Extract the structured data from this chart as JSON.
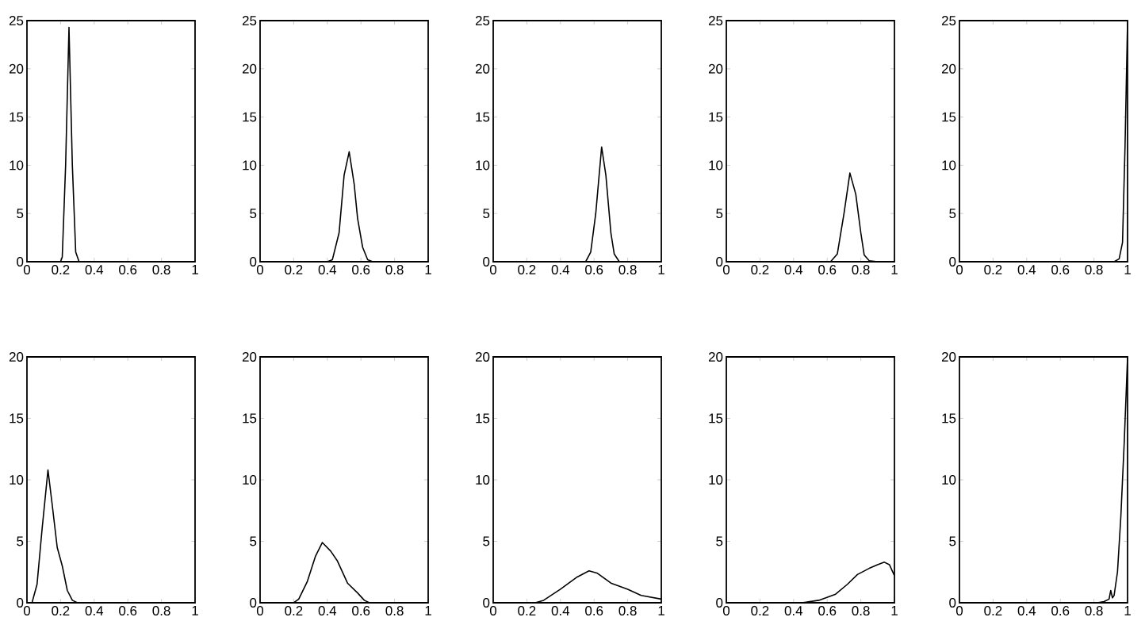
{
  "chart_data": [
    {
      "type": "line",
      "color": "#000000",
      "xlim": [
        0,
        1
      ],
      "ylim": [
        0,
        25
      ],
      "xticks": [
        0,
        0.2,
        0.4,
        0.6,
        0.8,
        1
      ],
      "yticks": [
        0,
        5,
        10,
        15,
        20,
        25
      ],
      "x": [
        0,
        0.2,
        0.21,
        0.23,
        0.25,
        0.27,
        0.29,
        0.31,
        1
      ],
      "values": [
        0,
        0,
        0.5,
        10,
        24.3,
        10,
        1,
        0,
        0
      ]
    },
    {
      "type": "line",
      "color": "#000000",
      "xlim": [
        0,
        1
      ],
      "ylim": [
        0,
        25
      ],
      "xticks": [
        0,
        0.2,
        0.4,
        0.6,
        0.8,
        1
      ],
      "yticks": [
        0,
        5,
        10,
        15,
        20,
        25
      ],
      "x": [
        0,
        0.4,
        0.43,
        0.47,
        0.5,
        0.53,
        0.56,
        0.58,
        0.61,
        0.64,
        0.67,
        1
      ],
      "values": [
        0,
        0,
        0.2,
        3,
        9,
        11.4,
        8,
        4.5,
        1.5,
        0.2,
        0,
        0
      ]
    },
    {
      "type": "line",
      "color": "#000000",
      "xlim": [
        0,
        1
      ],
      "ylim": [
        0,
        25
      ],
      "xticks": [
        0,
        0.2,
        0.4,
        0.6,
        0.8,
        1
      ],
      "yticks": [
        0,
        5,
        10,
        15,
        20,
        25
      ],
      "x": [
        0,
        0.55,
        0.58,
        0.61,
        0.645,
        0.67,
        0.7,
        0.72,
        0.75,
        1
      ],
      "values": [
        0,
        0,
        1,
        5,
        11.9,
        9,
        3,
        0.8,
        0,
        0
      ]
    },
    {
      "type": "line",
      "color": "#000000",
      "xlim": [
        0,
        1
      ],
      "ylim": [
        0,
        25
      ],
      "xticks": [
        0,
        0.2,
        0.4,
        0.6,
        0.8,
        1
      ],
      "yticks": [
        0,
        5,
        10,
        15,
        20,
        25
      ],
      "x": [
        0,
        0.62,
        0.66,
        0.7,
        0.735,
        0.77,
        0.8,
        0.82,
        0.85,
        0.9,
        1
      ],
      "values": [
        0,
        0,
        0.8,
        5,
        9.2,
        7,
        3,
        0.7,
        0.1,
        0,
        0
      ]
    },
    {
      "type": "line",
      "color": "#000000",
      "xlim": [
        0,
        1
      ],
      "ylim": [
        0,
        25
      ],
      "xticks": [
        0,
        0.2,
        0.4,
        0.6,
        0.8,
        1
      ],
      "yticks": [
        0,
        5,
        10,
        15,
        20,
        25
      ],
      "x": [
        0,
        0.92,
        0.95,
        0.97,
        0.985,
        1
      ],
      "values": [
        0,
        0,
        0.3,
        2,
        12,
        25
      ]
    },
    {
      "type": "line",
      "color": "#000000",
      "xlim": [
        0,
        1
      ],
      "ylim": [
        0,
        20
      ],
      "xticks": [
        0,
        0.2,
        0.4,
        0.6,
        0.8,
        1
      ],
      "yticks": [
        0,
        5,
        10,
        15,
        20
      ],
      "x": [
        0,
        0.03,
        0.06,
        0.09,
        0.125,
        0.15,
        0.18,
        0.21,
        0.24,
        0.27,
        0.3,
        1
      ],
      "values": [
        0,
        0,
        1.5,
        6,
        10.8,
        8,
        4.5,
        3,
        1,
        0.2,
        0,
        0
      ]
    },
    {
      "type": "line",
      "color": "#000000",
      "xlim": [
        0,
        1
      ],
      "ylim": [
        0,
        20
      ],
      "xticks": [
        0,
        0.2,
        0.4,
        0.6,
        0.8,
        1
      ],
      "yticks": [
        0,
        5,
        10,
        15,
        20
      ],
      "x": [
        0,
        0.2,
        0.23,
        0.28,
        0.33,
        0.37,
        0.42,
        0.46,
        0.52,
        0.58,
        0.62,
        0.65,
        1
      ],
      "values": [
        0,
        0,
        0.3,
        1.7,
        3.8,
        4.9,
        4.2,
        3.4,
        1.6,
        0.8,
        0.2,
        0,
        0
      ]
    },
    {
      "type": "line",
      "color": "#000000",
      "xlim": [
        0,
        1
      ],
      "ylim": [
        0,
        20
      ],
      "xticks": [
        0,
        0.2,
        0.4,
        0.6,
        0.8,
        1
      ],
      "yticks": [
        0,
        5,
        10,
        15,
        20
      ],
      "x": [
        0,
        0.25,
        0.3,
        0.4,
        0.5,
        0.57,
        0.62,
        0.7,
        0.8,
        0.88,
        1
      ],
      "values": [
        0,
        0,
        0.2,
        1.1,
        2.1,
        2.6,
        2.4,
        1.6,
        1.1,
        0.6,
        0.3
      ]
    },
    {
      "type": "line",
      "color": "#000000",
      "xlim": [
        0,
        1
      ],
      "ylim": [
        0,
        20
      ],
      "xticks": [
        0,
        0.2,
        0.4,
        0.6,
        0.8,
        1
      ],
      "yticks": [
        0,
        5,
        10,
        15,
        20
      ],
      "x": [
        0,
        0.45,
        0.55,
        0.65,
        0.72,
        0.78,
        0.85,
        0.9,
        0.94,
        0.97,
        1
      ],
      "values": [
        0,
        0,
        0.2,
        0.7,
        1.5,
        2.3,
        2.8,
        3.1,
        3.3,
        3.1,
        2.2
      ]
    },
    {
      "type": "line",
      "color": "#000000",
      "xlim": [
        0,
        1
      ],
      "ylim": [
        0,
        20
      ],
      "xticks": [
        0,
        0.2,
        0.4,
        0.6,
        0.8,
        1
      ],
      "yticks": [
        0,
        5,
        10,
        15,
        20
      ],
      "x": [
        0,
        0.82,
        0.86,
        0.89,
        0.9,
        0.91,
        0.92,
        0.94,
        0.96,
        0.98,
        1
      ],
      "values": [
        0,
        0,
        0.1,
        0.3,
        1.0,
        0.4,
        0.6,
        2.5,
        7,
        13,
        20
      ]
    }
  ]
}
